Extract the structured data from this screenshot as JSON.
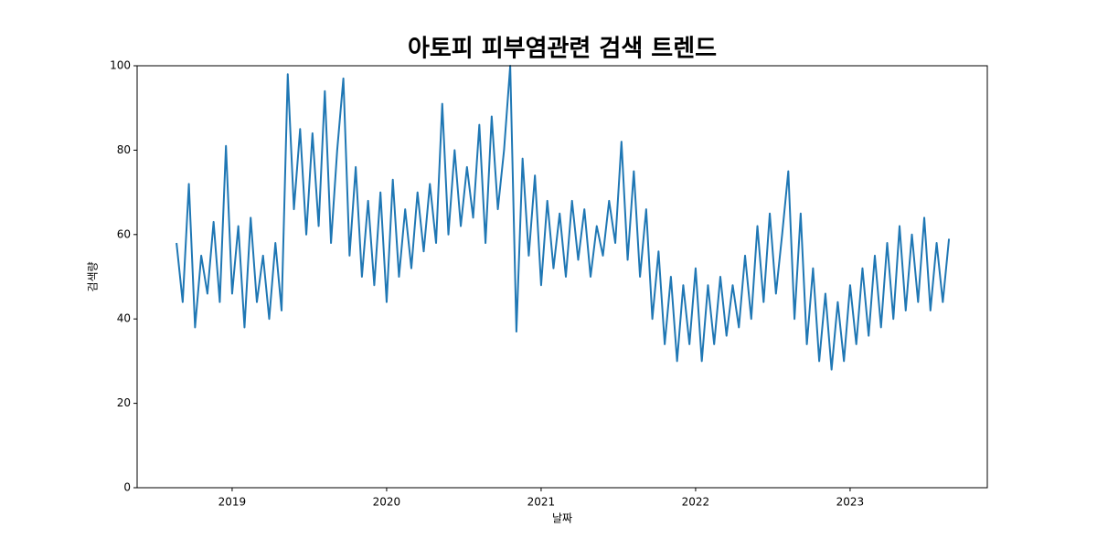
{
  "chart_data": {
    "type": "line",
    "title": "아토피 피부염관련 검색 트렌드",
    "x_label": "날짜",
    "y_label": "검색량",
    "x": [
      2018.64,
      2018.68,
      2018.72,
      2018.76,
      2018.8,
      2018.84,
      2018.88,
      2018.92,
      2018.96,
      2019,
      2019.04,
      2019.08,
      2019.12,
      2019.16,
      2019.2,
      2019.24,
      2019.28,
      2019.32,
      2019.36,
      2019.4,
      2019.44,
      2019.48,
      2019.52,
      2019.56,
      2019.6,
      2019.64,
      2019.68,
      2019.72,
      2019.76,
      2019.8,
      2019.84,
      2019.88,
      2019.92,
      2019.96,
      2020,
      2020.04,
      2020.08,
      2020.12,
      2020.16,
      2020.2,
      2020.24,
      2020.28,
      2020.32,
      2020.36,
      2020.4,
      2020.44,
      2020.48,
      2020.52,
      2020.56,
      2020.6,
      2020.64,
      2020.68,
      2020.72,
      2020.76,
      2020.8,
      2020.84,
      2020.88,
      2020.92,
      2020.96,
      2021,
      2021.04,
      2021.08,
      2021.12,
      2021.16,
      2021.2,
      2021.24,
      2021.28,
      2021.32,
      2021.36,
      2021.4,
      2021.44,
      2021.48,
      2021.52,
      2021.56,
      2021.6,
      2021.64,
      2021.68,
      2021.72,
      2021.76,
      2021.8,
      2021.84,
      2021.88,
      2021.92,
      2021.96,
      2022,
      2022.04,
      2022.08,
      2022.12,
      2022.16,
      2022.2,
      2022.24,
      2022.28,
      2022.32,
      2022.36,
      2022.4,
      2022.44,
      2022.48,
      2022.52,
      2022.56,
      2022.6,
      2022.64,
      2022.68,
      2022.72,
      2022.76,
      2022.8,
      2022.84,
      2022.88,
      2022.92,
      2022.96,
      2023,
      2023.04,
      2023.08,
      2023.12,
      2023.16,
      2023.2,
      2023.24,
      2023.28,
      2023.32,
      2023.36,
      2023.4,
      2023.44,
      2023.48,
      2023.52,
      2023.56,
      2023.6,
      2023.64
    ],
    "series": [
      {
        "name": "검색량",
        "color": "#1f77b4",
        "values": [
          58,
          44,
          72,
          38,
          55,
          46,
          63,
          44,
          81,
          46,
          62,
          38,
          64,
          44,
          55,
          40,
          58,
          42,
          98,
          66,
          85,
          60,
          84,
          62,
          94,
          58,
          80,
          97,
          55,
          76,
          50,
          68,
          48,
          70,
          44,
          73,
          50,
          66,
          52,
          70,
          56,
          72,
          58,
          91,
          60,
          80,
          62,
          76,
          64,
          86,
          58,
          88,
          66,
          80,
          100,
          37,
          78,
          55,
          74,
          48,
          68,
          52,
          65,
          50,
          68,
          54,
          66,
          50,
          62,
          55,
          68,
          58,
          82,
          54,
          75,
          50,
          66,
          40,
          56,
          34,
          50,
          30,
          48,
          34,
          52,
          30,
          48,
          34,
          50,
          36,
          48,
          38,
          55,
          40,
          62,
          44,
          65,
          46,
          60,
          75,
          40,
          65,
          34,
          52,
          30,
          46,
          28,
          44,
          30,
          48,
          34,
          52,
          36,
          55,
          38,
          58,
          40,
          62,
          42,
          60,
          44,
          64,
          42,
          58,
          44,
          59
        ]
      }
    ],
    "xlim": [
      2018.385,
      2023.888
    ],
    "xticks": [
      2019,
      2020,
      2021,
      2022,
      2023
    ],
    "ylim": [
      0,
      100
    ],
    "yticks": [
      0,
      20,
      40,
      60,
      80,
      100
    ],
    "grid": false
  }
}
